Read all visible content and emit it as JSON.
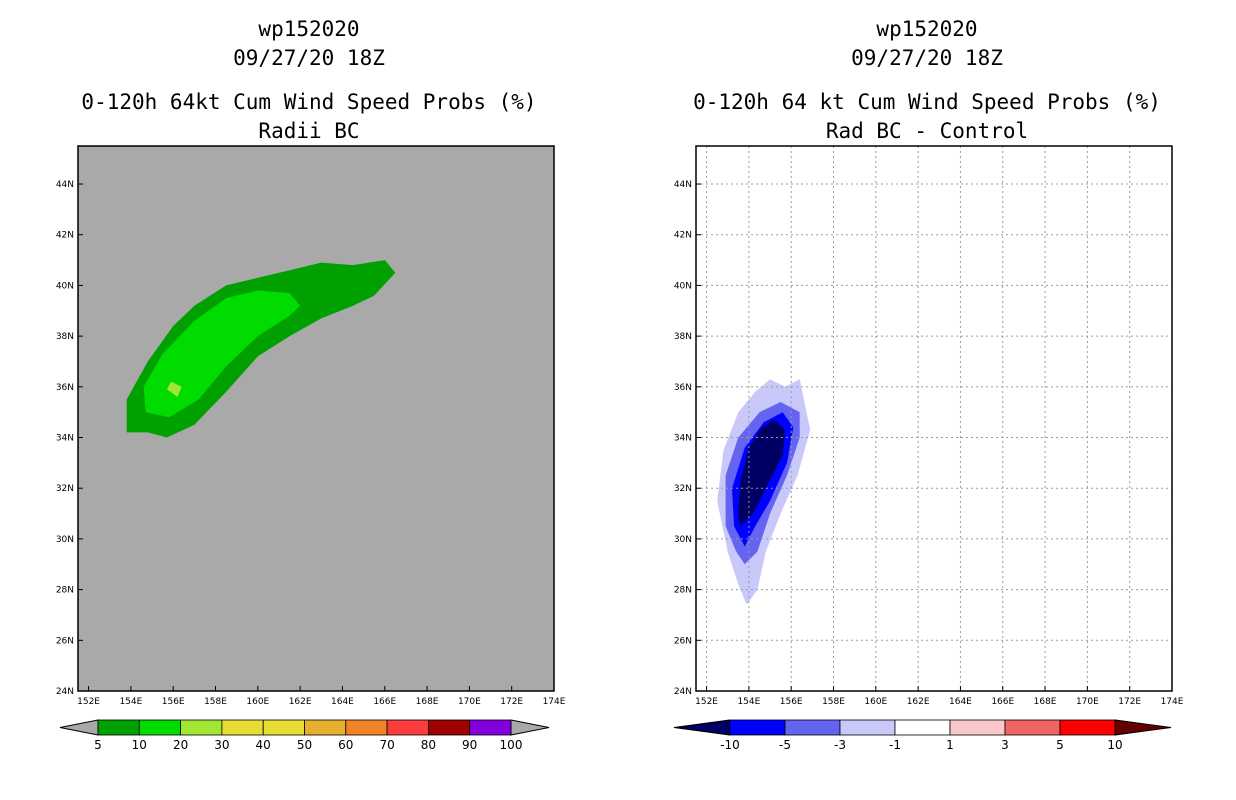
{
  "chart_data": [
    {
      "type": "contour-map",
      "storm_id": "wp152020",
      "datetime": "09/27/20 18Z",
      "title": "0-120h 64kt Cum Wind Speed Probs (%)",
      "subtitle": "Radii BC",
      "xlabel": "",
      "ylabel": "",
      "x_range": [
        151.5,
        174
      ],
      "y_range": [
        24,
        45.5
      ],
      "x_ticks": [
        152,
        154,
        156,
        158,
        160,
        162,
        164,
        166,
        168,
        170,
        172,
        174
      ],
      "x_tick_labels": [
        "152E",
        "154E",
        "156E",
        "158E",
        "160E",
        "162E",
        "164E",
        "166E",
        "168E",
        "170E",
        "172E",
        "174E"
      ],
      "y_ticks": [
        24,
        26,
        28,
        30,
        32,
        34,
        36,
        38,
        40,
        42,
        44
      ],
      "y_tick_labels": [
        "24N",
        "26N",
        "28N",
        "30N",
        "32N",
        "34N",
        "36N",
        "38N",
        "40N",
        "42N",
        "44N"
      ],
      "grid": false,
      "background_color": "#a9a9a9",
      "contours": [
        {
          "level": "5-10%",
          "color": "#00a000",
          "points": [
            [
              153.8,
              34.2
            ],
            [
              154.8,
              34.2
            ],
            [
              155.7,
              34
            ],
            [
              157,
              34.5
            ],
            [
              158.5,
              35.8
            ],
            [
              160,
              37.2
            ],
            [
              161.5,
              38
            ],
            [
              163,
              38.7
            ],
            [
              164.5,
              39.2
            ],
            [
              165.5,
              39.6
            ],
            [
              166.5,
              40.5
            ],
            [
              166,
              41
            ],
            [
              164.5,
              40.8
            ],
            [
              163,
              40.9
            ],
            [
              161.5,
              40.6
            ],
            [
              160,
              40.3
            ],
            [
              158.5,
              40
            ],
            [
              157,
              39.2
            ],
            [
              156,
              38.4
            ],
            [
              154.8,
              37
            ],
            [
              153.8,
              35.5
            ]
          ]
        },
        {
          "level": "10-20%",
          "color": "#00dc00",
          "points": [
            [
              154.7,
              35
            ],
            [
              155.8,
              34.8
            ],
            [
              157.2,
              35.5
            ],
            [
              158.5,
              36.8
            ],
            [
              160,
              38
            ],
            [
              161.5,
              38.8
            ],
            [
              162,
              39.2
            ],
            [
              161.5,
              39.7
            ],
            [
              160,
              39.8
            ],
            [
              158.5,
              39.5
            ],
            [
              157,
              38.6
            ],
            [
              155.5,
              37.3
            ],
            [
              154.6,
              36
            ]
          ]
        },
        {
          "level": "20-30%",
          "color": "#a0e632",
          "points": [
            [
              155.7,
              35.9
            ],
            [
              156.2,
              35.6
            ],
            [
              156.4,
              36
            ],
            [
              155.9,
              36.2
            ]
          ]
        }
      ],
      "colorbar": {
        "labels": [
          "5",
          "10",
          "20",
          "30",
          "40",
          "50",
          "60",
          "70",
          "80",
          "90",
          "100"
        ],
        "colors": [
          "#00a000",
          "#00dc00",
          "#a0e632",
          "#e6dc32",
          "#e6dc32",
          "#e6af2d",
          "#f08228",
          "#fa3c3c",
          "#a00000",
          "#8200dc"
        ],
        "under_color": "#a9a9a9",
        "over_color": "#a9a9a9"
      }
    },
    {
      "type": "contour-map",
      "storm_id": "wp152020",
      "datetime": "09/27/20 18Z",
      "title": "0-120h 64 kt Cum Wind Speed Probs (%)",
      "subtitle": "Rad BC - Control",
      "xlabel": "",
      "ylabel": "",
      "x_range": [
        151.5,
        174
      ],
      "y_range": [
        24,
        45.5
      ],
      "x_ticks": [
        152,
        154,
        156,
        158,
        160,
        162,
        164,
        166,
        168,
        170,
        172,
        174
      ],
      "x_tick_labels": [
        "152E",
        "154E",
        "156E",
        "158E",
        "160E",
        "162E",
        "164E",
        "166E",
        "168E",
        "170E",
        "172E",
        "174E"
      ],
      "y_ticks": [
        24,
        26,
        28,
        30,
        32,
        34,
        36,
        38,
        40,
        42,
        44
      ],
      "y_tick_labels": [
        "24N",
        "26N",
        "28N",
        "30N",
        "32N",
        "34N",
        "36N",
        "38N",
        "40N",
        "42N",
        "44N"
      ],
      "grid": true,
      "background_color": "#ffffff",
      "contours": [
        {
          "level": "-3 to -1",
          "color": "#c8c8fa",
          "points": [
            [
              153.9,
              27.4
            ],
            [
              154.4,
              28
            ],
            [
              154.8,
              29.5
            ],
            [
              155.5,
              31
            ],
            [
              156.3,
              32.5
            ],
            [
              156.9,
              34.3
            ],
            [
              156.6,
              35.5
            ],
            [
              156.4,
              36.3
            ],
            [
              155.7,
              36
            ],
            [
              155,
              36.3
            ],
            [
              154.3,
              35.8
            ],
            [
              153.5,
              35
            ],
            [
              152.8,
              33.5
            ],
            [
              152.5,
              31.5
            ],
            [
              153,
              29.5
            ],
            [
              153.5,
              28.2
            ]
          ]
        },
        {
          "level": "-5 to -3",
          "color": "#6464f0",
          "points": [
            [
              153.8,
              29
            ],
            [
              154.4,
              29.5
            ],
            [
              155,
              31
            ],
            [
              155.8,
              32.5
            ],
            [
              156.4,
              34
            ],
            [
              156.4,
              35
            ],
            [
              155.5,
              35.4
            ],
            [
              154.5,
              35
            ],
            [
              153.5,
              34
            ],
            [
              152.9,
              32.5
            ],
            [
              152.9,
              30.5
            ],
            [
              153.4,
              29.5
            ]
          ]
        },
        {
          "level": "-10 to -5",
          "color": "#0000ff",
          "points": [
            [
              153.8,
              29.7
            ],
            [
              154.3,
              30.5
            ],
            [
              155,
              31.5
            ],
            [
              155.8,
              33
            ],
            [
              156.1,
              34.4
            ],
            [
              155.6,
              35
            ],
            [
              154.7,
              34.6
            ],
            [
              153.8,
              33.6
            ],
            [
              153.2,
              32
            ],
            [
              153.3,
              30.5
            ]
          ]
        },
        {
          "level": "< -10",
          "color": "#000064",
          "points": [
            [
              153.6,
              30.5
            ],
            [
              154.2,
              31
            ],
            [
              154.8,
              32
            ],
            [
              155.6,
              33.3
            ],
            [
              155.7,
              34.3
            ],
            [
              155.2,
              34.7
            ],
            [
              154.6,
              34.4
            ],
            [
              154,
              33.6
            ],
            [
              153.6,
              32.3
            ],
            [
              153.5,
              31
            ]
          ]
        }
      ],
      "colorbar": {
        "labels": [
          "-10",
          "-5",
          "-3",
          "-1",
          "1",
          "3",
          "5",
          "10"
        ],
        "colors": [
          "#0000ff",
          "#6464f0",
          "#c8c8fa",
          "#ffffff",
          "#fac8c8",
          "#f06464",
          "#ff0000"
        ],
        "under_color": "#000064",
        "over_color": "#640000"
      }
    }
  ]
}
